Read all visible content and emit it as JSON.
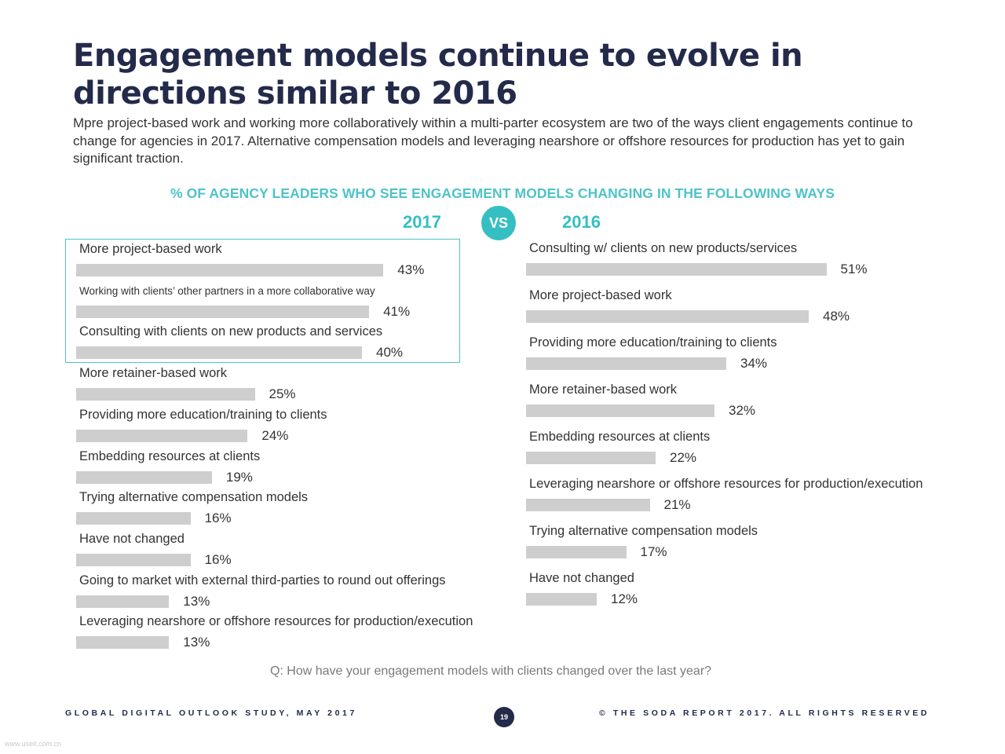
{
  "title": "Engagement models continue to evolve in directions similar to 2016",
  "subtitle": "Mpre project-based work and working more collaboratively within a multi-parter ecosystem are two of the ways client engagements continue to change for agencies in 2017. Alternative compensation models and leveraging nearshore or offshore resources for production has yet to gain significant traction.",
  "question": "Q: How have your engagement models with clients changed over the last year?",
  "footer": {
    "left": "GLOBAL DIGITAL OUTLOOK STUDY, MAY 2017",
    "right": "© THE SODA REPORT 2017. ALL RIGHTS RESERVED",
    "page": "19"
  },
  "watermark": "www.useit.com.cn",
  "colors": {
    "title": "#232a4a",
    "accent": "#36bfc2",
    "bar": "#cecece"
  },
  "chart_data": {
    "type": "bar",
    "orientation": "horizontal",
    "title": "% OF AGENCY LEADERS WHO SEE ENGAGEMENT MODELS CHANGING IN THE FOLLOWING WAYS",
    "vs_label": "VS",
    "unit": "%",
    "panels": [
      {
        "year": "2017",
        "highlighted_top": 3,
        "items": [
          {
            "label": "More project-based work",
            "value": 43
          },
          {
            "label": "Working with clients’ other partners in a more collaborative way",
            "value": 41
          },
          {
            "label": "Consulting with clients on new products and services",
            "value": 40
          },
          {
            "label": "More retainer-based work",
            "value": 25
          },
          {
            "label": "Providing more education/training to clients",
            "value": 24
          },
          {
            "label": "Embedding resources at clients",
            "value": 19
          },
          {
            "label": "Trying alternative compensation models",
            "value": 16
          },
          {
            "label": "Have not changed",
            "value": 16
          },
          {
            "label": "Going to market with external third-parties to round out offerings",
            "value": 13
          },
          {
            "label": "Leveraging nearshore or offshore resources for production/execution",
            "value": 13
          }
        ]
      },
      {
        "year": "2016",
        "items": [
          {
            "label": "Consulting w/ clients on new products/services",
            "value": 51
          },
          {
            "label": "More project-based work",
            "value": 48
          },
          {
            "label": "Providing more education/training to clients",
            "value": 34
          },
          {
            "label": "More retainer-based work",
            "value": 32
          },
          {
            "label": "Embedding resources at clients",
            "value": 22
          },
          {
            "label": "Leveraging nearshore or offshore resources for production/execution",
            "value": 21
          },
          {
            "label": "Trying alternative compensation models",
            "value": 17
          },
          {
            "label": "Have not changed",
            "value": 12
          }
        ]
      }
    ]
  }
}
